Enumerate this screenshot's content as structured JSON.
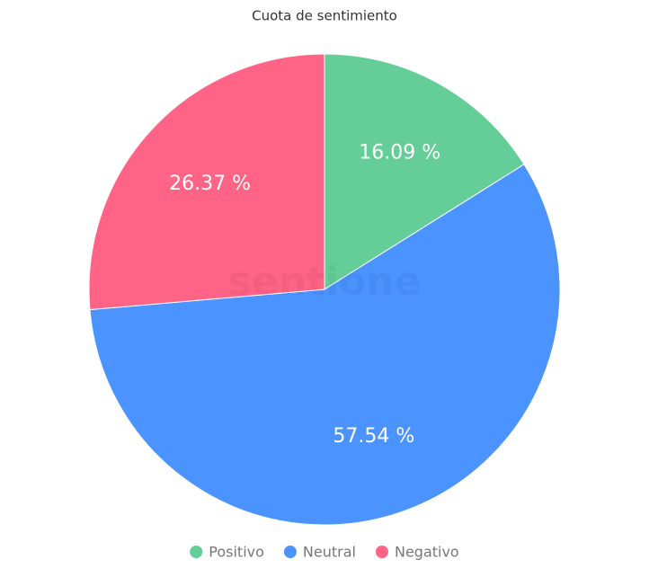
{
  "chart_data": {
    "type": "pie",
    "title": "Cuota de sentimiento",
    "watermark": "sentione",
    "categories": [
      "Positivo",
      "Neutral",
      "Negativo"
    ],
    "values": [
      16.09,
      57.54,
      26.37
    ],
    "value_labels": [
      "16.09 %",
      "57.54 %",
      "26.37 %"
    ],
    "colors": [
      "#64cd98",
      "#4b93ff",
      "#ff6385"
    ],
    "legend": "bottom"
  }
}
